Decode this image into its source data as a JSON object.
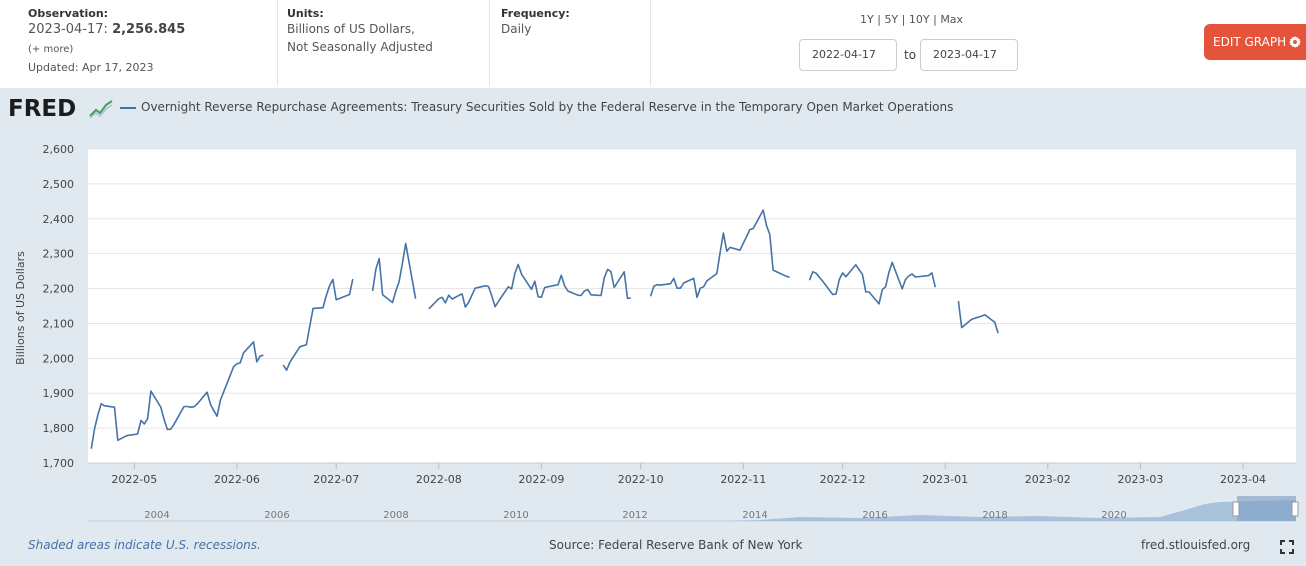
{
  "header": {
    "observation_label": "Observation:",
    "observation_date": "2023-04-17:",
    "observation_value": "2,256.845",
    "more_link": "(+ more)",
    "updated": "Updated: Apr 17, 2023",
    "units_label": "Units:",
    "units_line1": "Billions of US Dollars,",
    "units_line2": "Not Seasonally Adjusted",
    "frequency_label": "Frequency:",
    "frequency_value": "Daily",
    "range_1y": "1Y",
    "range_5y": "5Y",
    "range_10y": "10Y",
    "range_max": "Max",
    "range_sep": "|",
    "date_from": "2022-04-17",
    "to_label": "to",
    "date_to": "2023-04-17",
    "edit_button": "EDIT GRAPH",
    "edit_color": "#e4543b"
  },
  "chart_header": {
    "logo": "FRED",
    "series_title": "Overnight Reverse Repurchase Agreements: Treasury Securities Sold by the Federal Reserve in the Temporary Open Market Operations"
  },
  "footer": {
    "recession_note": "Shaded areas indicate U.S. recessions.",
    "source": "Source: Federal Reserve Bank of New York",
    "site": "fred.stlouisfed.org",
    "expand_icon": "expand-icon"
  },
  "chart_data": {
    "type": "line",
    "ylabel": "Billions of US Dollars",
    "ylim": [
      1700,
      2600
    ],
    "xlim": [
      "2022-04-17",
      "2023-04-17"
    ],
    "grid": "horizontal",
    "line_color": "#4572a7",
    "background_color": "#ffffff",
    "y_ticks": [
      "1,700",
      "1,800",
      "1,900",
      "2,000",
      "2,100",
      "2,200",
      "2,300",
      "2,400",
      "2,500",
      "2,600"
    ],
    "x_ticks": [
      {
        "date": "2022-05-01",
        "label": "2022-05"
      },
      {
        "date": "2022-06-01",
        "label": "2022-06"
      },
      {
        "date": "2022-07-01",
        "label": "2022-07"
      },
      {
        "date": "2022-08-01",
        "label": "2022-08"
      },
      {
        "date": "2022-09-01",
        "label": "2022-09"
      },
      {
        "date": "2022-10-01",
        "label": "2022-10"
      },
      {
        "date": "2022-11-01",
        "label": "2022-11"
      },
      {
        "date": "2022-12-01",
        "label": "2022-12"
      },
      {
        "date": "2023-01-01",
        "label": "2023-01"
      },
      {
        "date": "2023-02-01",
        "label": "2023-02"
      },
      {
        "date": "2023-03-01",
        "label": "2023-03"
      },
      {
        "date": "2023-04-01",
        "label": "2023-04"
      }
    ],
    "series": [
      {
        "segments": [
          [
            [
              "2022-04-18",
              1741
            ],
            [
              "2022-04-19",
              1799
            ],
            [
              "2022-04-20",
              1838
            ],
            [
              "2022-04-21",
              1870
            ],
            [
              "2022-04-22",
              1864
            ],
            [
              "2022-04-25",
              1860
            ],
            [
              "2022-04-26",
              1765
            ],
            [
              "2022-04-27",
              1770
            ],
            [
              "2022-04-28",
              1775
            ],
            [
              "2022-04-29",
              1779
            ],
            [
              "2022-05-02",
              1783
            ],
            [
              "2022-05-03",
              1822
            ],
            [
              "2022-05-04",
              1812
            ],
            [
              "2022-05-05",
              1827
            ],
            [
              "2022-05-06",
              1906
            ],
            [
              "2022-05-09",
              1860
            ],
            [
              "2022-05-10",
              1825
            ],
            [
              "2022-05-11",
              1796
            ],
            [
              "2022-05-12",
              1797
            ],
            [
              "2022-05-13",
              1811
            ],
            [
              "2022-05-16",
              1862
            ],
            [
              "2022-05-17",
              1862
            ],
            [
              "2022-05-18",
              1860
            ],
            [
              "2022-05-19",
              1861
            ],
            [
              "2022-05-20",
              1869
            ],
            [
              "2022-05-23",
              1903
            ],
            [
              "2022-05-24",
              1868
            ],
            [
              "2022-05-25",
              1850
            ],
            [
              "2022-05-26",
              1834
            ],
            [
              "2022-05-27",
              1880
            ],
            [
              "2022-05-31",
              1976
            ],
            [
              "2022-06-01",
              1984
            ],
            [
              "2022-06-02",
              1987
            ],
            [
              "2022-06-03",
              2016
            ],
            [
              "2022-06-06",
              2047
            ],
            [
              "2022-06-07",
              1990
            ],
            [
              "2022-06-08",
              2006
            ],
            [
              "2022-06-09",
              2009
            ]
          ],
          [
            [
              "2022-06-15",
              1981
            ],
            [
              "2022-06-16",
              1966
            ],
            [
              "2022-06-17",
              1989
            ],
            [
              "2022-06-20",
              2033
            ],
            [
              "2022-06-21",
              2036
            ],
            [
              "2022-06-22",
              2039
            ],
            [
              "2022-06-23",
              2091
            ],
            [
              "2022-06-24",
              2143
            ],
            [
              "2022-06-27",
              2145
            ],
            [
              "2022-06-28",
              2180
            ],
            [
              "2022-06-29",
              2208
            ],
            [
              "2022-06-30",
              2226
            ],
            [
              "2022-07-01",
              2168
            ],
            [
              "2022-07-05",
              2183
            ],
            [
              "2022-07-06",
              2227
            ]
          ],
          [
            [
              "2022-07-12",
              2193
            ],
            [
              "2022-07-13",
              2256
            ],
            [
              "2022-07-14",
              2286
            ],
            [
              "2022-07-15",
              2182
            ],
            [
              "2022-07-18",
              2160
            ],
            [
              "2022-07-19",
              2193
            ],
            [
              "2022-07-20",
              2220
            ],
            [
              "2022-07-21",
              2272
            ],
            [
              "2022-07-22",
              2329
            ],
            [
              "2022-07-25",
              2171
            ]
          ],
          [
            [
              "2022-07-29",
              2142
            ],
            [
              "2022-08-01",
              2171
            ],
            [
              "2022-08-02",
              2175
            ],
            [
              "2022-08-03",
              2159
            ],
            [
              "2022-08-04",
              2181
            ],
            [
              "2022-08-05",
              2170
            ],
            [
              "2022-08-08",
              2185
            ],
            [
              "2022-08-09",
              2147
            ],
            [
              "2022-08-10",
              2160
            ],
            [
              "2022-08-11",
              2181
            ],
            [
              "2022-08-12",
              2201
            ],
            [
              "2022-08-15",
              2208
            ],
            [
              "2022-08-16",
              2206
            ],
            [
              "2022-08-17",
              2179
            ],
            [
              "2022-08-18",
              2148
            ],
            [
              "2022-08-19",
              2163
            ],
            [
              "2022-08-22",
              2205
            ],
            [
              "2022-08-23",
              2199
            ],
            [
              "2022-08-24",
              2244
            ],
            [
              "2022-08-25",
              2269
            ],
            [
              "2022-08-26",
              2241
            ],
            [
              "2022-08-29",
              2198
            ],
            [
              "2022-08-30",
              2221
            ],
            [
              "2022-08-31",
              2177
            ],
            [
              "2022-09-01",
              2175
            ],
            [
              "2022-09-02",
              2203
            ],
            [
              "2022-09-06",
              2211
            ],
            [
              "2022-09-07",
              2238
            ],
            [
              "2022-09-08",
              2208
            ],
            [
              "2022-09-09",
              2193
            ],
            [
              "2022-09-12",
              2181
            ],
            [
              "2022-09-13",
              2180
            ],
            [
              "2022-09-14",
              2193
            ],
            [
              "2022-09-15",
              2197
            ],
            [
              "2022-09-16",
              2182
            ],
            [
              "2022-09-19",
              2180
            ],
            [
              "2022-09-20",
              2231
            ],
            [
              "2022-09-21",
              2255
            ],
            [
              "2022-09-22",
              2249
            ],
            [
              "2022-09-23",
              2203
            ],
            [
              "2022-09-26",
              2248
            ],
            [
              "2022-09-27",
              2172
            ],
            [
              "2022-09-28",
              2173
            ]
          ],
          [
            [
              "2022-10-04",
              2178
            ],
            [
              "2022-10-05",
              2207
            ],
            [
              "2022-10-06",
              2211
            ],
            [
              "2022-10-07",
              2210
            ],
            [
              "2022-10-10",
              2214
            ],
            [
              "2022-10-11",
              2229
            ],
            [
              "2022-10-12",
              2201
            ],
            [
              "2022-10-13",
              2201
            ],
            [
              "2022-10-14",
              2216
            ],
            [
              "2022-10-17",
              2229
            ],
            [
              "2022-10-18",
              2175
            ],
            [
              "2022-10-19",
              2201
            ],
            [
              "2022-10-20",
              2205
            ],
            [
              "2022-10-21",
              2222
            ],
            [
              "2022-10-24",
              2243
            ],
            [
              "2022-10-25",
              2303
            ],
            [
              "2022-10-26",
              2359
            ],
            [
              "2022-10-27",
              2307
            ],
            [
              "2022-10-28",
              2318
            ],
            [
              "2022-10-31",
              2310
            ],
            [
              "2022-11-01",
              2330
            ],
            [
              "2022-11-02",
              2349
            ],
            [
              "2022-11-03",
              2369
            ],
            [
              "2022-11-04",
              2372
            ],
            [
              "2022-11-07",
              2425
            ],
            [
              "2022-11-08",
              2381
            ],
            [
              "2022-11-09",
              2355
            ],
            [
              "2022-11-10",
              2253
            ],
            [
              "2022-11-14",
              2235
            ],
            [
              "2022-11-15",
              2232
            ]
          ],
          [
            [
              "2022-11-21",
              2224
            ],
            [
              "2022-11-22",
              2248
            ],
            [
              "2022-11-23",
              2244
            ],
            [
              "2022-11-25",
              2221
            ],
            [
              "2022-11-28",
              2183
            ],
            [
              "2022-11-29",
              2184
            ],
            [
              "2022-11-30",
              2226
            ],
            [
              "2022-12-01",
              2245
            ],
            [
              "2022-12-02",
              2234
            ],
            [
              "2022-12-05",
              2268
            ],
            [
              "2022-12-06",
              2254
            ],
            [
              "2022-12-07",
              2241
            ],
            [
              "2022-12-08",
              2190
            ],
            [
              "2022-12-09",
              2190
            ],
            [
              "2022-12-12",
              2156
            ],
            [
              "2022-12-13",
              2197
            ],
            [
              "2022-12-14",
              2205
            ],
            [
              "2022-12-15",
              2246
            ],
            [
              "2022-12-16",
              2275
            ],
            [
              "2022-12-19",
              2199
            ],
            [
              "2022-12-20",
              2226
            ],
            [
              "2022-12-21",
              2236
            ],
            [
              "2022-12-22",
              2242
            ],
            [
              "2022-12-23",
              2233
            ],
            [
              "2022-12-27",
              2237
            ],
            [
              "2022-12-28",
              2245
            ],
            [
              "2022-12-29",
              2204
            ]
          ],
          [
            [
              "2023-01-05",
              2164
            ],
            [
              "2023-01-06",
              2088
            ],
            [
              "2023-01-09",
              2112
            ],
            [
              "2023-01-10",
              2115
            ],
            [
              "2023-01-11",
              2118
            ],
            [
              "2023-01-12",
              2121
            ],
            [
              "2023-01-13",
              2125
            ],
            [
              "2023-01-16",
              2103
            ],
            [
              "2023-01-17",
              2072
            ]
          ]
        ]
      }
    ]
  }
}
